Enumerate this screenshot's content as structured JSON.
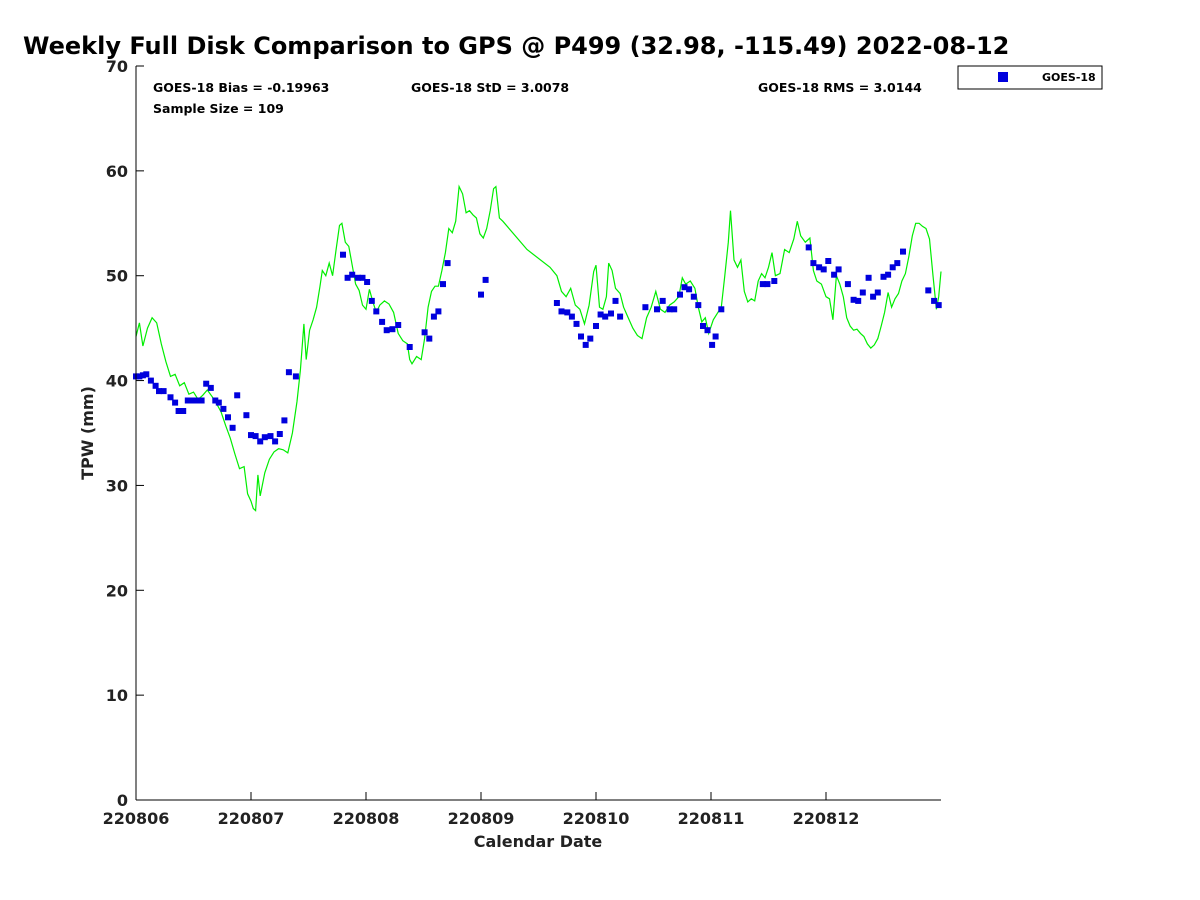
{
  "chart_data": {
    "type": "scatter+line",
    "title": "Weekly Full Disk Comparison to GPS @ P499 (32.98, -115.49) 2022-08-12",
    "xlabel": "Calendar Date",
    "ylabel": "TPW (mm)",
    "xlim": [
      0,
      7
    ],
    "ylim": [
      0,
      70
    ],
    "yticks": [
      0,
      10,
      20,
      30,
      40,
      50,
      60,
      70
    ],
    "xticks": [
      {
        "value": 0,
        "label": "220806"
      },
      {
        "value": 1,
        "label": "220807"
      },
      {
        "value": 2,
        "label": "220808"
      },
      {
        "value": 3,
        "label": "220809"
      },
      {
        "value": 4,
        "label": "220810"
      },
      {
        "value": 5,
        "label": "220811"
      },
      {
        "value": 6,
        "label": "220812"
      }
    ],
    "stats": {
      "bias": "GOES-18 Bias = -0.19963",
      "std": "GOES-18 StD = 3.0078",
      "rms": "GOES-18 RMS = 3.0144",
      "sample": "Sample Size = 109"
    },
    "legend": {
      "label": "GOES-18",
      "position": "top-right-outside"
    },
    "colors": {
      "goes": "#0000dd",
      "gps": "#00ee00",
      "axis": "#000000"
    },
    "goes_series": {
      "name": "GOES-18",
      "points": [
        [
          0.0,
          40.4
        ],
        [
          0.03,
          40.4
        ],
        [
          0.06,
          40.5
        ],
        [
          0.09,
          40.6
        ],
        [
          0.13,
          40.0
        ],
        [
          0.17,
          39.5
        ],
        [
          0.2,
          39.0
        ],
        [
          0.24,
          39.0
        ],
        [
          0.3,
          38.4
        ],
        [
          0.34,
          37.9
        ],
        [
          0.37,
          37.1
        ],
        [
          0.41,
          37.1
        ],
        [
          0.45,
          38.1
        ],
        [
          0.49,
          38.1
        ],
        [
          0.53,
          38.1
        ],
        [
          0.57,
          38.1
        ],
        [
          0.61,
          39.7
        ],
        [
          0.65,
          39.3
        ],
        [
          0.69,
          38.1
        ],
        [
          0.72,
          37.9
        ],
        [
          0.76,
          37.3
        ],
        [
          0.8,
          36.5
        ],
        [
          0.84,
          35.5
        ],
        [
          0.88,
          38.6
        ],
        [
          0.96,
          36.7
        ],
        [
          1.0,
          34.8
        ],
        [
          1.04,
          34.7
        ],
        [
          1.08,
          34.2
        ],
        [
          1.12,
          34.6
        ],
        [
          1.17,
          34.7
        ],
        [
          1.21,
          34.2
        ],
        [
          1.25,
          34.9
        ],
        [
          1.29,
          36.2
        ],
        [
          1.33,
          40.8
        ],
        [
          1.39,
          40.4
        ],
        [
          1.8,
          52.0
        ],
        [
          1.84,
          49.8
        ],
        [
          1.88,
          50.1
        ],
        [
          1.93,
          49.8
        ],
        [
          1.97,
          49.8
        ],
        [
          2.01,
          49.4
        ],
        [
          2.05,
          47.6
        ],
        [
          2.09,
          46.6
        ],
        [
          2.14,
          45.6
        ],
        [
          2.18,
          44.8
        ],
        [
          2.23,
          44.9
        ],
        [
          2.28,
          45.3
        ],
        [
          2.38,
          43.2
        ],
        [
          2.51,
          44.6
        ],
        [
          2.55,
          44.0
        ],
        [
          2.59,
          46.1
        ],
        [
          2.63,
          46.6
        ],
        [
          2.67,
          49.2
        ],
        [
          2.71,
          51.2
        ],
        [
          3.0,
          48.2
        ],
        [
          3.04,
          49.6
        ],
        [
          3.66,
          47.4
        ],
        [
          3.7,
          46.6
        ],
        [
          3.75,
          46.5
        ],
        [
          3.79,
          46.1
        ],
        [
          3.83,
          45.4
        ],
        [
          3.87,
          44.2
        ],
        [
          3.91,
          43.4
        ],
        [
          3.95,
          44.0
        ],
        [
          4.0,
          45.2
        ],
        [
          4.04,
          46.3
        ],
        [
          4.08,
          46.1
        ],
        [
          4.13,
          46.4
        ],
        [
          4.17,
          47.6
        ],
        [
          4.21,
          46.1
        ],
        [
          4.43,
          47.0
        ],
        [
          4.53,
          46.8
        ],
        [
          4.58,
          47.6
        ],
        [
          4.64,
          46.8
        ],
        [
          4.68,
          46.8
        ],
        [
          4.73,
          48.2
        ],
        [
          4.77,
          48.9
        ],
        [
          4.81,
          48.7
        ],
        [
          4.85,
          48.0
        ],
        [
          4.89,
          47.2
        ],
        [
          4.93,
          45.2
        ],
        [
          4.97,
          44.8
        ],
        [
          5.01,
          43.4
        ],
        [
          5.04,
          44.2
        ],
        [
          5.09,
          46.8
        ],
        [
          5.45,
          49.2
        ],
        [
          5.49,
          49.2
        ],
        [
          5.55,
          49.5
        ],
        [
          5.85,
          52.7
        ],
        [
          5.89,
          51.2
        ],
        [
          5.94,
          50.8
        ],
        [
          5.98,
          50.6
        ],
        [
          6.02,
          51.4
        ],
        [
          6.07,
          50.1
        ],
        [
          6.11,
          50.6
        ],
        [
          6.19,
          49.2
        ],
        [
          6.24,
          47.7
        ],
        [
          6.28,
          47.6
        ],
        [
          6.32,
          48.4
        ],
        [
          6.37,
          49.8
        ],
        [
          6.41,
          48.0
        ],
        [
          6.45,
          48.4
        ],
        [
          6.5,
          49.9
        ],
        [
          6.54,
          50.1
        ],
        [
          6.58,
          50.8
        ],
        [
          6.62,
          51.2
        ],
        [
          6.67,
          52.3
        ],
        [
          6.89,
          48.6
        ],
        [
          6.94,
          47.6
        ],
        [
          6.98,
          47.2
        ]
      ]
    },
    "gps_series": {
      "name": "GPS",
      "points": [
        [
          0.0,
          44.2
        ],
        [
          0.03,
          45.5
        ],
        [
          0.06,
          43.3
        ],
        [
          0.1,
          45.0
        ],
        [
          0.14,
          46.0
        ],
        [
          0.18,
          45.5
        ],
        [
          0.22,
          43.5
        ],
        [
          0.26,
          41.8
        ],
        [
          0.3,
          40.4
        ],
        [
          0.34,
          40.6
        ],
        [
          0.38,
          39.5
        ],
        [
          0.42,
          39.8
        ],
        [
          0.46,
          38.7
        ],
        [
          0.5,
          38.9
        ],
        [
          0.54,
          38.2
        ],
        [
          0.58,
          38.6
        ],
        [
          0.62,
          39.1
        ],
        [
          0.66,
          38.5
        ],
        [
          0.7,
          37.8
        ],
        [
          0.74,
          37.0
        ],
        [
          0.78,
          35.7
        ],
        [
          0.82,
          34.5
        ],
        [
          0.86,
          33.0
        ],
        [
          0.9,
          31.6
        ],
        [
          0.94,
          31.8
        ],
        [
          0.97,
          29.2
        ],
        [
          1.0,
          28.5
        ],
        [
          1.02,
          27.8
        ],
        [
          1.04,
          27.6
        ],
        [
          1.06,
          31.0
        ],
        [
          1.08,
          29.0
        ],
        [
          1.12,
          31.2
        ],
        [
          1.16,
          32.5
        ],
        [
          1.2,
          33.2
        ],
        [
          1.24,
          33.5
        ],
        [
          1.28,
          33.4
        ],
        [
          1.32,
          33.1
        ],
        [
          1.36,
          35.0
        ],
        [
          1.4,
          38.0
        ],
        [
          1.43,
          41.0
        ],
        [
          1.46,
          45.4
        ],
        [
          1.48,
          42.0
        ],
        [
          1.51,
          44.8
        ],
        [
          1.54,
          45.8
        ],
        [
          1.57,
          47.0
        ],
        [
          1.6,
          49.0
        ],
        [
          1.62,
          50.5
        ],
        [
          1.65,
          50.0
        ],
        [
          1.68,
          51.2
        ],
        [
          1.71,
          50.0
        ],
        [
          1.74,
          52.5
        ],
        [
          1.77,
          54.8
        ],
        [
          1.79,
          55.0
        ],
        [
          1.82,
          53.2
        ],
        [
          1.85,
          52.8
        ],
        [
          1.88,
          51.0
        ],
        [
          1.91,
          49.2
        ],
        [
          1.94,
          48.6
        ],
        [
          1.97,
          47.2
        ],
        [
          2.0,
          46.8
        ],
        [
          2.03,
          48.7
        ],
        [
          2.06,
          47.5
        ],
        [
          2.09,
          46.5
        ],
        [
          2.12,
          47.2
        ],
        [
          2.16,
          47.6
        ],
        [
          2.2,
          47.3
        ],
        [
          2.24,
          46.5
        ],
        [
          2.28,
          44.5
        ],
        [
          2.32,
          43.8
        ],
        [
          2.36,
          43.5
        ],
        [
          2.38,
          42.0
        ],
        [
          2.4,
          41.6
        ],
        [
          2.44,
          42.3
        ],
        [
          2.48,
          42.0
        ],
        [
          2.51,
          44.0
        ],
        [
          2.54,
          47.0
        ],
        [
          2.57,
          48.5
        ],
        [
          2.6,
          49.0
        ],
        [
          2.63,
          49.0
        ],
        [
          2.66,
          50.5
        ],
        [
          2.69,
          52.2
        ],
        [
          2.72,
          54.5
        ],
        [
          2.75,
          54.1
        ],
        [
          2.78,
          55.2
        ],
        [
          2.81,
          58.5
        ],
        [
          2.84,
          57.8
        ],
        [
          2.87,
          56.0
        ],
        [
          2.9,
          56.2
        ],
        [
          2.93,
          55.8
        ],
        [
          2.96,
          55.5
        ],
        [
          2.99,
          54.0
        ],
        [
          3.02,
          53.6
        ],
        [
          3.05,
          54.5
        ],
        [
          3.08,
          56.2
        ],
        [
          3.11,
          58.3
        ],
        [
          3.13,
          58.5
        ],
        [
          3.16,
          55.5
        ],
        [
          3.19,
          55.2
        ],
        [
          3.4,
          52.5
        ],
        [
          3.6,
          50.8
        ],
        [
          3.66,
          50.0
        ],
        [
          3.7,
          48.5
        ],
        [
          3.74,
          48.0
        ],
        [
          3.78,
          48.8
        ],
        [
          3.82,
          47.2
        ],
        [
          3.86,
          46.8
        ],
        [
          3.9,
          45.4
        ],
        [
          3.94,
          47.2
        ],
        [
          3.98,
          50.4
        ],
        [
          4.0,
          51.0
        ],
        [
          4.03,
          47.0
        ],
        [
          4.06,
          46.8
        ],
        [
          4.09,
          48.0
        ],
        [
          4.11,
          51.2
        ],
        [
          4.14,
          50.5
        ],
        [
          4.17,
          48.8
        ],
        [
          4.21,
          48.3
        ],
        [
          4.24,
          47.0
        ],
        [
          4.28,
          46.0
        ],
        [
          4.32,
          45.0
        ],
        [
          4.36,
          44.3
        ],
        [
          4.4,
          44.0
        ],
        [
          4.44,
          46.0
        ],
        [
          4.48,
          47.0
        ],
        [
          4.52,
          48.5
        ],
        [
          4.56,
          46.8
        ],
        [
          4.6,
          46.5
        ],
        [
          4.64,
          47.2
        ],
        [
          4.68,
          47.5
        ],
        [
          4.72,
          48.0
        ],
        [
          4.75,
          49.8
        ],
        [
          4.78,
          49.2
        ],
        [
          4.82,
          49.5
        ],
        [
          4.86,
          48.8
        ],
        [
          4.89,
          47.0
        ],
        [
          4.92,
          45.6
        ],
        [
          4.95,
          46.0
        ],
        [
          4.98,
          44.5
        ],
        [
          5.02,
          45.8
        ],
        [
          5.06,
          46.5
        ],
        [
          5.09,
          47.0
        ],
        [
          5.12,
          50.0
        ],
        [
          5.15,
          53.2
        ],
        [
          5.17,
          56.2
        ],
        [
          5.2,
          51.5
        ],
        [
          5.23,
          50.8
        ],
        [
          5.26,
          51.5
        ],
        [
          5.29,
          48.5
        ],
        [
          5.32,
          47.5
        ],
        [
          5.35,
          47.8
        ],
        [
          5.38,
          47.6
        ],
        [
          5.41,
          49.5
        ],
        [
          5.44,
          50.2
        ],
        [
          5.47,
          49.8
        ],
        [
          5.5,
          50.8
        ],
        [
          5.53,
          52.2
        ],
        [
          5.56,
          50.0
        ],
        [
          5.6,
          50.2
        ],
        [
          5.64,
          52.5
        ],
        [
          5.68,
          52.2
        ],
        [
          5.72,
          53.5
        ],
        [
          5.75,
          55.2
        ],
        [
          5.78,
          53.8
        ],
        [
          5.82,
          53.2
        ],
        [
          5.86,
          53.6
        ],
        [
          5.89,
          50.5
        ],
        [
          5.92,
          49.5
        ],
        [
          5.96,
          49.2
        ],
        [
          6.0,
          48.0
        ],
        [
          6.03,
          47.8
        ],
        [
          6.06,
          45.8
        ],
        [
          6.09,
          50.0
        ],
        [
          6.12,
          49.2
        ],
        [
          6.15,
          48.0
        ],
        [
          6.18,
          46.0
        ],
        [
          6.21,
          45.2
        ],
        [
          6.24,
          44.8
        ],
        [
          6.27,
          44.9
        ],
        [
          6.3,
          44.5
        ],
        [
          6.33,
          44.2
        ],
        [
          6.36,
          43.5
        ],
        [
          6.39,
          43.1
        ],
        [
          6.42,
          43.4
        ],
        [
          6.45,
          44.0
        ],
        [
          6.48,
          45.2
        ],
        [
          6.51,
          46.5
        ],
        [
          6.54,
          48.4
        ],
        [
          6.57,
          47.0
        ],
        [
          6.6,
          47.8
        ],
        [
          6.63,
          48.3
        ],
        [
          6.66,
          49.5
        ],
        [
          6.69,
          50.2
        ],
        [
          6.72,
          51.8
        ],
        [
          6.75,
          53.8
        ],
        [
          6.78,
          55.0
        ],
        [
          6.81,
          55.0
        ],
        [
          6.84,
          54.7
        ],
        [
          6.87,
          54.5
        ],
        [
          6.9,
          53.5
        ],
        [
          6.93,
          50.0
        ],
        [
          6.96,
          46.8
        ],
        [
          6.98,
          48.0
        ],
        [
          7.0,
          50.4
        ]
      ]
    }
  }
}
